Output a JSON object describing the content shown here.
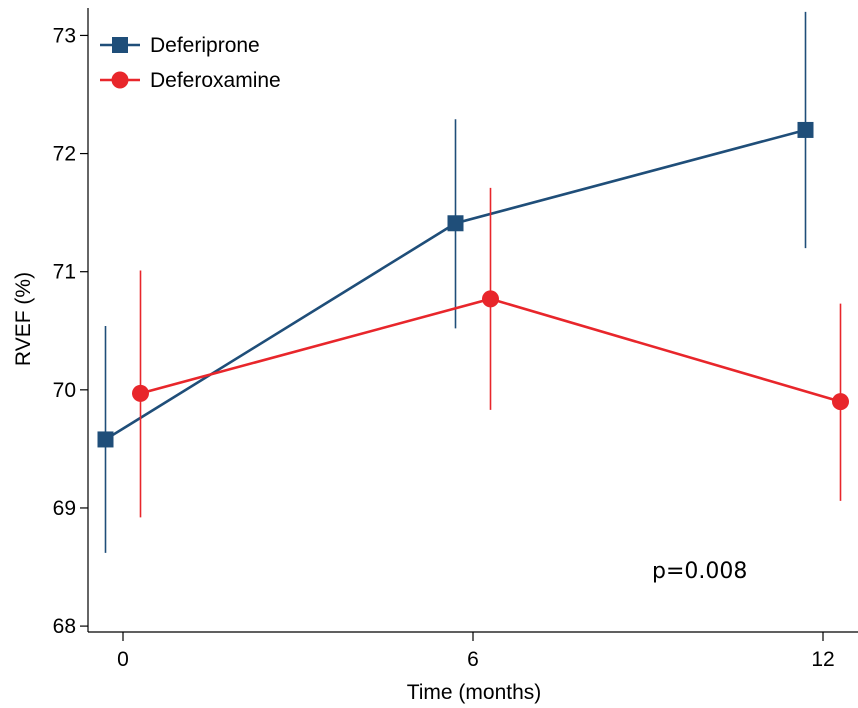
{
  "chart_data": {
    "type": "line",
    "title": "",
    "xlabel": "Time (months)",
    "ylabel": "RVEF (%)",
    "xlim": [
      -0.6,
      12.6
    ],
    "ylim": [
      67.95,
      73.3
    ],
    "x_ticks": [
      "0",
      "6",
      "12"
    ],
    "y_ticks": [
      "68",
      "69",
      "70",
      "71",
      "72",
      "73"
    ],
    "grid": false,
    "legend_position": "top-left",
    "annotation": "p=0.008",
    "series": [
      {
        "name": "Deferiprone",
        "color": "#1F4E79",
        "marker": "square",
        "x": [
          -0.3,
          5.7,
          11.7
        ],
        "y": [
          69.58,
          71.41,
          72.2
        ],
        "y_low": [
          68.62,
          70.52,
          71.2
        ],
        "y_high": [
          70.54,
          72.29,
          73.2
        ]
      },
      {
        "name": "Deferoxamine",
        "color": "#E8262B",
        "marker": "circle",
        "x": [
          0.3,
          6.3,
          12.3
        ],
        "y": [
          69.97,
          70.77,
          69.9
        ],
        "y_low": [
          68.92,
          69.83,
          69.06
        ],
        "y_high": [
          71.01,
          71.71,
          70.73
        ]
      }
    ]
  }
}
